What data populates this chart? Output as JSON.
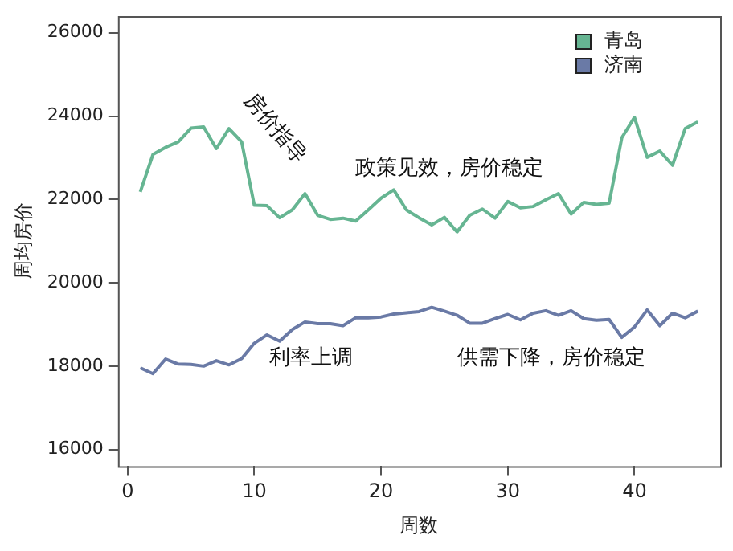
{
  "chart_data": {
    "type": "line",
    "xlabel": "周数",
    "ylabel": "周均房价",
    "x": [
      1,
      2,
      3,
      4,
      5,
      6,
      7,
      8,
      9,
      10,
      11,
      12,
      13,
      14,
      15,
      16,
      17,
      18,
      19,
      20,
      21,
      22,
      23,
      24,
      25,
      26,
      27,
      28,
      29,
      30,
      31,
      32,
      33,
      34,
      35,
      36,
      37,
      38,
      39,
      40,
      41,
      42,
      43,
      44,
      45
    ],
    "series": [
      {
        "name": "青岛",
        "color": "#66b592",
        "values": [
          22180,
          23080,
          23250,
          23380,
          23710,
          23740,
          23220,
          23700,
          23380,
          21860,
          21850,
          21560,
          21750,
          22140,
          21620,
          21520,
          21550,
          21480,
          21750,
          22030,
          22230,
          21750,
          21560,
          21390,
          21570,
          21220,
          21620,
          21770,
          21550,
          21950,
          21800,
          21830,
          21990,
          22140,
          21650,
          21930,
          21880,
          21910,
          23480,
          23970,
          23010,
          23160,
          22820,
          23700,
          23860
        ]
      },
      {
        "name": "济南",
        "color": "#6a7aa6",
        "values": [
          17960,
          17820,
          18170,
          18050,
          18040,
          18000,
          18130,
          18030,
          18180,
          18550,
          18750,
          18600,
          18880,
          19060,
          19020,
          19020,
          18970,
          19160,
          19160,
          19180,
          19250,
          19280,
          19310,
          19410,
          19320,
          19220,
          19030,
          19030,
          19140,
          19240,
          19110,
          19270,
          19330,
          19220,
          19330,
          19140,
          19100,
          19120,
          18690,
          18940,
          19350,
          18970,
          19270,
          19160,
          19320
        ]
      }
    ],
    "xlim": [
      -0.76,
      46.76
    ],
    "xticks": [
      0,
      10,
      20,
      30,
      40
    ],
    "ylim": [
      15600,
      26400
    ],
    "yticks": [
      16000,
      18000,
      20000,
      22000,
      24000,
      26000
    ],
    "grid": false,
    "legend": "top right",
    "marker": "none",
    "line_style": "solid",
    "annotations": [
      "房价指导",
      "政策见效，房价稳定",
      "利率上调",
      "供需下降，房价稳定"
    ]
  }
}
